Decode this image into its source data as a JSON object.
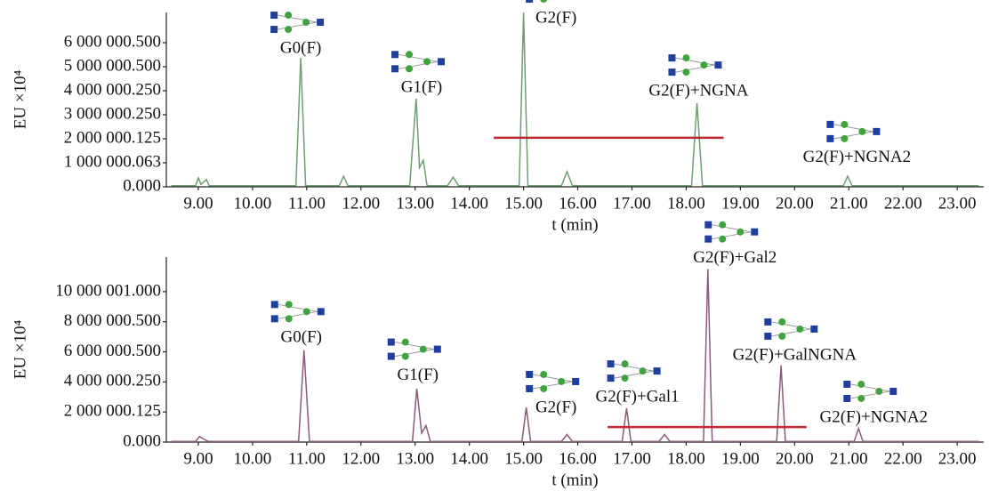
{
  "chart_data": [
    {
      "type": "line",
      "xlabel": "t (min)",
      "ylabel": "EU ×10⁴",
      "color": "#6f9e72",
      "xlim": [
        8.41,
        23.49
      ],
      "ylim": [
        0,
        7260000
      ],
      "xticks": [
        {
          "value": 9,
          "label": "9.00"
        },
        {
          "value": 10,
          "label": "10.00"
        },
        {
          "value": 11,
          "label": "11.00"
        },
        {
          "value": 12,
          "label": "12.00"
        },
        {
          "value": 13,
          "label": "13.00"
        },
        {
          "value": 14,
          "label": "14.00"
        },
        {
          "value": 15,
          "label": "15.00"
        },
        {
          "value": 16,
          "label": "16.00"
        },
        {
          "value": 17,
          "label": "17.00"
        },
        {
          "value": 18,
          "label": "18.00"
        },
        {
          "value": 19,
          "label": "19.00"
        },
        {
          "value": 20,
          "label": "20.00"
        },
        {
          "value": 21,
          "label": "21.00"
        },
        {
          "value": 22,
          "label": "22.00"
        },
        {
          "value": 23,
          "label": "23.00"
        }
      ],
      "yticks": [
        {
          "value": 0,
          "label": "0.000"
        },
        {
          "value": 1000000.063,
          "label": "1 000 000.063"
        },
        {
          "value": 2000000.125,
          "label": "2 000 000.125"
        },
        {
          "value": 3000000.25,
          "label": "3 000 000.250"
        },
        {
          "value": 4000000.25,
          "label": "4 000 000.250"
        },
        {
          "value": 5000000.5,
          "label": "5 000 000.500"
        },
        {
          "value": 6000000.5,
          "label": "6 000 000.500"
        }
      ],
      "x": [
        8.5,
        8.95,
        9.0,
        9.05,
        9.1,
        9.15,
        9.2,
        10.8,
        10.89,
        10.98,
        11.6,
        11.68,
        11.76,
        12.9,
        13.02,
        13.08,
        13.15,
        13.22,
        13.6,
        13.7,
        13.8,
        14.92,
        15.0,
        15.08,
        15.7,
        15.8,
        15.9,
        18.1,
        18.2,
        18.3,
        20.9,
        20.98,
        21.06,
        23.4
      ],
      "values": [
        50000,
        50000,
        370000,
        100000,
        200000,
        300000,
        50000,
        50000,
        5370000,
        50000,
        50000,
        440000,
        50000,
        50000,
        3670000,
        800000,
        1100000,
        50000,
        50000,
        400000,
        50000,
        50000,
        7250000,
        50000,
        50000,
        630000,
        50000,
        50000,
        3480000,
        50000,
        50000,
        440000,
        50000,
        50000
      ],
      "lines": [
        {
          "x": [
            14.45,
            18.69
          ],
          "y": [
            2040000,
            2040000
          ],
          "color": "#c0282d"
        }
      ],
      "annotations": [
        {
          "text": "G0(F)",
          "x": 10.89,
          "y": 5740000
        },
        {
          "text": "G1(F)",
          "x": 13.12,
          "y": 4100000
        },
        {
          "text": "G2(F)",
          "x": 15.6,
          "y": 7000000
        },
        {
          "text": "G2(F)+NGNA",
          "x": 18.23,
          "y": 3960000
        },
        {
          "text": "G2(F)+NGNA2",
          "x": 21.15,
          "y": 1190000
        }
      ]
    },
    {
      "type": "line",
      "xlabel": "t (min)",
      "ylabel": "EU ×10⁴",
      "color": "#8a5a7c",
      "xlim": [
        8.41,
        23.49
      ],
      "ylim": [
        0,
        12300000
      ],
      "xticks": [
        {
          "value": 9,
          "label": "9.00"
        },
        {
          "value": 10,
          "label": "10.00"
        },
        {
          "value": 11,
          "label": "11.00"
        },
        {
          "value": 12,
          "label": "12.00"
        },
        {
          "value": 13,
          "label": "13.00"
        },
        {
          "value": 14,
          "label": "14.00"
        },
        {
          "value": 15,
          "label": "15.00"
        },
        {
          "value": 16,
          "label": "16.00"
        },
        {
          "value": 17,
          "label": "17.00"
        },
        {
          "value": 18,
          "label": "18.00"
        },
        {
          "value": 19,
          "label": "19.00"
        },
        {
          "value": 20,
          "label": "20.00"
        },
        {
          "value": 21,
          "label": "21.00"
        },
        {
          "value": 22,
          "label": "22.00"
        },
        {
          "value": 23,
          "label": "23.00"
        }
      ],
      "yticks": [
        {
          "value": 0,
          "label": "0.000"
        },
        {
          "value": 2000000.125,
          "label": "2 000 000.125"
        },
        {
          "value": 4000000.25,
          "label": "4 000 000.250"
        },
        {
          "value": 6000000.5,
          "label": "6 000 000.500"
        },
        {
          "value": 8000000.5,
          "label": "8 000 000.500"
        },
        {
          "value": 10000001,
          "label": "10 000 001.000"
        }
      ],
      "x": [
        8.5,
        8.95,
        9.02,
        9.1,
        9.18,
        10.85,
        10.95,
        11.05,
        12.95,
        13.03,
        13.12,
        13.2,
        13.28,
        14.97,
        15.05,
        15.13,
        15.7,
        15.8,
        15.9,
        16.82,
        16.9,
        16.98,
        17.5,
        17.6,
        17.7,
        18.32,
        18.4,
        18.48,
        19.67,
        19.75,
        19.83,
        21.1,
        21.18,
        21.26,
        23.4
      ],
      "values": [
        50000,
        50000,
        360000,
        200000,
        50000,
        50000,
        6100000,
        50000,
        50000,
        3550000,
        600000,
        1100000,
        50000,
        50000,
        2300000,
        50000,
        50000,
        500000,
        50000,
        50000,
        2250000,
        50000,
        50000,
        500000,
        50000,
        50000,
        11500000,
        50000,
        50000,
        5100000,
        50000,
        50000,
        900000,
        50000,
        50000
      ],
      "lines": [
        {
          "x": [
            16.55,
            20.22
          ],
          "y": [
            1000000,
            1000000
          ],
          "color": "#c0282d"
        }
      ],
      "annotations": [
        {
          "text": "G0(F)",
          "x": 10.9,
          "y": 6900000
        },
        {
          "text": "G1(F)",
          "x": 13.05,
          "y": 4400000
        },
        {
          "text": "G2(F)",
          "x": 15.6,
          "y": 2250000
        },
        {
          "text": "G2(F)+Gal1",
          "x": 17.1,
          "y": 2950000
        },
        {
          "text": "G2(F)+Gal2",
          "x": 18.9,
          "y": 12200000
        },
        {
          "text": "G2(F)+GalNGNA",
          "x": 20.0,
          "y": 5740000
        },
        {
          "text": "G2(F)+NGNA2",
          "x": 21.46,
          "y": 1600000
        }
      ]
    }
  ]
}
